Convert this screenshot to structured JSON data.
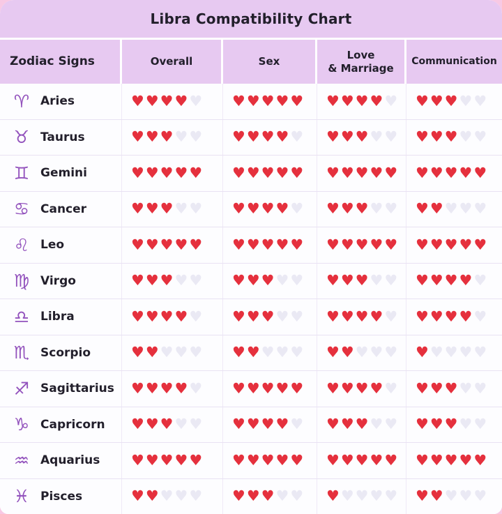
{
  "title": "Libra Compatibility Chart",
  "columns": [
    "Zodiac Signs",
    "Overall",
    "Sex",
    "Love\n& Marriage",
    "Communication"
  ],
  "heart_glyph": "♥",
  "colors": {
    "heart_filled": "#e5303d",
    "heart_empty": "#eae9f4",
    "band": "#e7c9f1",
    "glyph_purple": "#9353bd",
    "backdrop_pink": "#f8c9e4",
    "text": "#221f2b"
  },
  "chart_data": {
    "type": "table",
    "title": "Libra Compatibility Chart",
    "categories": [
      "Overall",
      "Sex",
      "Love & Marriage",
      "Communication"
    ],
    "rating_keys": [
      "overall",
      "sex",
      "love_marriage",
      "communication"
    ],
    "scale_max": 5,
    "rows": [
      {
        "sign": "Aries",
        "glyph": "♈",
        "ratings": {
          "overall": 4,
          "sex": 5,
          "love_marriage": 4,
          "communication": 3
        }
      },
      {
        "sign": "Taurus",
        "glyph": "♉",
        "ratings": {
          "overall": 3,
          "sex": 4,
          "love_marriage": 3,
          "communication": 3
        }
      },
      {
        "sign": "Gemini",
        "glyph": "♊",
        "ratings": {
          "overall": 5,
          "sex": 5,
          "love_marriage": 5,
          "communication": 5
        }
      },
      {
        "sign": "Cancer",
        "glyph": "♋",
        "ratings": {
          "overall": 3,
          "sex": 4,
          "love_marriage": 3,
          "communication": 2
        }
      },
      {
        "sign": "Leo",
        "glyph": "♌",
        "ratings": {
          "overall": 5,
          "sex": 5,
          "love_marriage": 5,
          "communication": 5
        }
      },
      {
        "sign": "Virgo",
        "glyph": "♍",
        "ratings": {
          "overall": 3,
          "sex": 3,
          "love_marriage": 3,
          "communication": 4
        }
      },
      {
        "sign": "Libra",
        "glyph": "♎",
        "ratings": {
          "overall": 4,
          "sex": 3,
          "love_marriage": 4,
          "communication": 4
        }
      },
      {
        "sign": "Scorpio",
        "glyph": "♏",
        "ratings": {
          "overall": 2,
          "sex": 2,
          "love_marriage": 2,
          "communication": 1
        }
      },
      {
        "sign": "Sagittarius",
        "glyph": "♐",
        "ratings": {
          "overall": 4,
          "sex": 5,
          "love_marriage": 4,
          "communication": 3
        }
      },
      {
        "sign": "Capricorn",
        "glyph": "♑",
        "ratings": {
          "overall": 3,
          "sex": 4,
          "love_marriage": 3,
          "communication": 3
        }
      },
      {
        "sign": "Aquarius",
        "glyph": "♒",
        "ratings": {
          "overall": 5,
          "sex": 5,
          "love_marriage": 5,
          "communication": 5
        }
      },
      {
        "sign": "Pisces",
        "glyph": "♓",
        "ratings": {
          "overall": 2,
          "sex": 3,
          "love_marriage": 1,
          "communication": 2
        }
      }
    ]
  }
}
